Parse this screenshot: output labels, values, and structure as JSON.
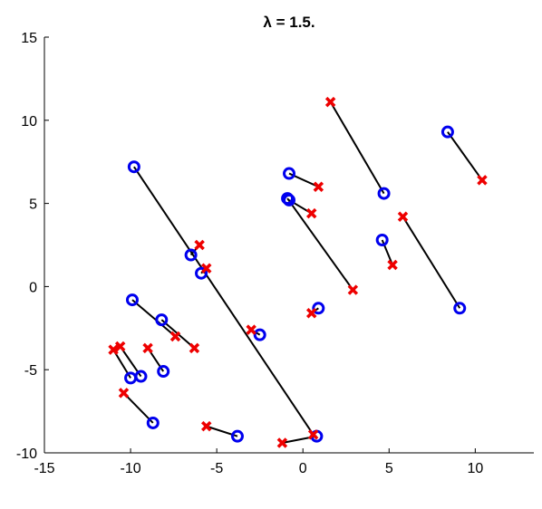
{
  "chart_data": {
    "type": "scatter",
    "title": "λ = 1.5.",
    "xlabel": "",
    "ylabel": "",
    "xlim": [
      -15,
      13.4
    ],
    "ylim": [
      -10,
      15
    ],
    "xticks": [
      -15,
      -10,
      -5,
      0,
      5,
      10
    ],
    "yticks": [
      -10,
      -5,
      0,
      5,
      10,
      15
    ],
    "xtick_labels": [
      "-15",
      "-10",
      "-5",
      "0",
      "5",
      "10"
    ],
    "ytick_labels": [
      "-10",
      "-5",
      "0",
      "5",
      "10",
      "15"
    ],
    "grid": false,
    "colors": {
      "circle": "#0000ee",
      "cross": "#ee0000",
      "line": "#000000"
    },
    "pairs": [
      {
        "o": [
          -9.8,
          7.2
        ],
        "x": [
          0.6,
          -8.9
        ]
      },
      {
        "o": [
          -0.8,
          6.8
        ],
        "x": [
          0.9,
          6.0
        ]
      },
      {
        "o": [
          -0.9,
          5.3
        ],
        "x": [
          2.9,
          -0.2
        ]
      },
      {
        "o": [
          4.7,
          5.6
        ],
        "x": [
          1.6,
          11.1
        ]
      },
      {
        "o": [
          8.4,
          9.3
        ],
        "x": [
          10.4,
          6.4
        ]
      },
      {
        "o": [
          9.1,
          -1.3
        ],
        "x": [
          5.8,
          4.2
        ]
      },
      {
        "o": [
          4.6,
          2.8
        ],
        "x": [
          5.2,
          1.3
        ]
      },
      {
        "o": [
          0.9,
          -1.3
        ],
        "x": [
          0.5,
          -1.6
        ]
      },
      {
        "o": [
          -0.8,
          5.2
        ],
        "x": [
          0.5,
          4.4
        ]
      },
      {
        "o": [
          -6.5,
          1.9
        ],
        "x": [
          -6.0,
          2.5
        ]
      },
      {
        "o": [
          -5.9,
          0.8
        ],
        "x": [
          -5.6,
          1.1
        ]
      },
      {
        "o": [
          -9.9,
          -0.8
        ],
        "x": [
          -7.4,
          -3.0
        ]
      },
      {
        "o": [
          -8.2,
          -2.0
        ],
        "x": [
          -6.3,
          -3.7
        ]
      },
      {
        "o": [
          -8.1,
          -5.1
        ],
        "x": [
          -9.0,
          -3.7
        ]
      },
      {
        "o": [
          -9.4,
          -5.4
        ],
        "x": [
          -10.6,
          -3.6
        ]
      },
      {
        "o": [
          -10.0,
          -5.5
        ],
        "x": [
          -11.0,
          -3.8
        ]
      },
      {
        "o": [
          -8.7,
          -8.2
        ],
        "x": [
          -10.4,
          -6.4
        ]
      },
      {
        "o": [
          -2.5,
          -2.9
        ],
        "x": [
          -3.0,
          -2.6
        ]
      },
      {
        "o": [
          -3.8,
          -9.0
        ],
        "x": [
          -5.6,
          -8.4
        ]
      },
      {
        "o": [
          0.8,
          -9.0
        ],
        "x": [
          -1.2,
          -9.4
        ]
      }
    ]
  }
}
